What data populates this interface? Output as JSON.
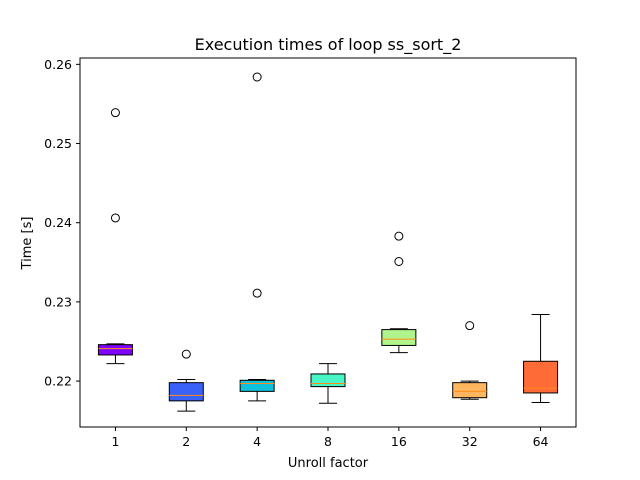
{
  "chart_data": {
    "type": "boxplot",
    "title": "Execution times of loop ss_sort_2",
    "xlabel": "Unroll factor",
    "ylabel": "Time [s]",
    "ylim": [
      0.2142,
      0.2608
    ],
    "yticks": [
      "0.22",
      "0.23",
      "0.24",
      "0.25",
      "0.26"
    ],
    "grid": false,
    "categories": [
      "1",
      "2",
      "4",
      "8",
      "16",
      "32",
      "64"
    ],
    "boxes": [
      {
        "label": "1",
        "whislo": 0.2222,
        "q1": 0.2233,
        "med": 0.2241,
        "q3": 0.2246,
        "whishi": 0.2247,
        "fliers": [
          0.2406,
          0.2539
        ],
        "color": "#8000ff"
      },
      {
        "label": "2",
        "whislo": 0.2162,
        "q1": 0.2175,
        "med": 0.2182,
        "q3": 0.2198,
        "whishi": 0.2202,
        "fliers": [
          0.2234
        ],
        "color": "#3a62f8"
      },
      {
        "label": "4",
        "whislo": 0.2175,
        "q1": 0.2187,
        "med": 0.2197,
        "q3": 0.2201,
        "whishi": 0.2202,
        "fliers": [
          0.2311,
          0.2584
        ],
        "color": "#10c1db"
      },
      {
        "label": "8",
        "whislo": 0.2172,
        "q1": 0.2193,
        "med": 0.2197,
        "q3": 0.2209,
        "whishi": 0.2222,
        "fliers": [],
        "color": "#48f5c4"
      },
      {
        "label": "16",
        "whislo": 0.2236,
        "q1": 0.2245,
        "med": 0.2253,
        "q3": 0.2265,
        "whishi": 0.2266,
        "fliers": [
          0.2351,
          0.2383
        ],
        "color": "#b0f58c"
      },
      {
        "label": "32",
        "whislo": 0.2177,
        "q1": 0.2179,
        "med": 0.2187,
        "q3": 0.2198,
        "whishi": 0.22,
        "fliers": [
          0.227
        ],
        "color": "#ffb65f"
      },
      {
        "label": "64",
        "whislo": 0.2173,
        "q1": 0.2185,
        "med": 0.2191,
        "q3": 0.2225,
        "whishi": 0.2284,
        "fliers": [],
        "color": "#ff6b37"
      }
    ],
    "median_color": "#ff8c1a"
  }
}
